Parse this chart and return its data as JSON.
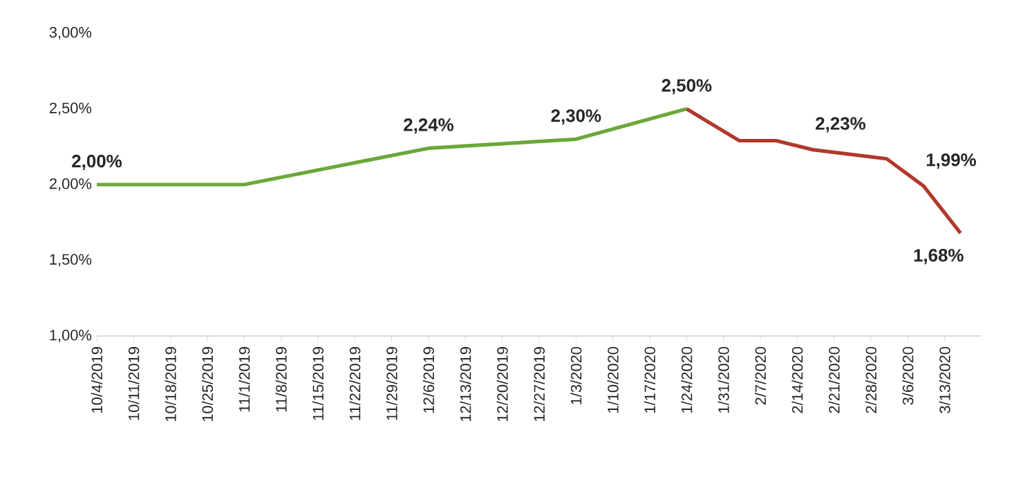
{
  "chart_data": {
    "type": "line",
    "xlim": [
      "2019-10-04",
      "2020-03-20"
    ],
    "xticks": [
      {
        "value": "2019-10-04",
        "label": "10/4/2019"
      },
      {
        "value": "2019-10-11",
        "label": "10/11/2019"
      },
      {
        "value": "2019-10-18",
        "label": "10/18/2019"
      },
      {
        "value": "2019-10-25",
        "label": "10/25/2019"
      },
      {
        "value": "2019-11-01",
        "label": "11/1/2019"
      },
      {
        "value": "2019-11-08",
        "label": "11/8/2019"
      },
      {
        "value": "2019-11-15",
        "label": "11/15/2019"
      },
      {
        "value": "2019-11-22",
        "label": "11/22/2019"
      },
      {
        "value": "2019-11-29",
        "label": "11/29/2019"
      },
      {
        "value": "2019-12-06",
        "label": "12/6/2019"
      },
      {
        "value": "2019-12-13",
        "label": "12/13/2019"
      },
      {
        "value": "2019-12-20",
        "label": "12/20/2019"
      },
      {
        "value": "2019-12-27",
        "label": "12/27/2019"
      },
      {
        "value": "2020-01-03",
        "label": "1/3/2020"
      },
      {
        "value": "2020-01-10",
        "label": "1/10/2020"
      },
      {
        "value": "2020-01-17",
        "label": "1/17/2020"
      },
      {
        "value": "2020-01-24",
        "label": "1/24/2020"
      },
      {
        "value": "2020-01-31",
        "label": "1/31/2020"
      },
      {
        "value": "2020-02-07",
        "label": "2/7/2020"
      },
      {
        "value": "2020-02-14",
        "label": "2/14/2020"
      },
      {
        "value": "2020-02-21",
        "label": "2/21/2020"
      },
      {
        "value": "2020-02-28",
        "label": "2/28/2020"
      },
      {
        "value": "2020-03-06",
        "label": "3/6/2020"
      },
      {
        "value": "2020-03-13",
        "label": "3/13/2020"
      }
    ],
    "ylim": [
      1.0,
      3.0
    ],
    "yticks": [
      {
        "value": 1.0,
        "label": "1,00%"
      },
      {
        "value": 1.5,
        "label": "1,50%"
      },
      {
        "value": 2.0,
        "label": "2,00%"
      },
      {
        "value": 2.5,
        "label": "2,50%"
      },
      {
        "value": 3.0,
        "label": "3,00%"
      }
    ],
    "grid": false,
    "line_style": "solid",
    "marker": "none",
    "series": [
      {
        "color": "#6aa83a",
        "x": [
          "2019-10-04",
          "2019-11-01",
          "2019-12-06",
          "2020-01-03",
          "2020-01-24"
        ],
        "values": [
          2.0,
          2.0,
          2.24,
          2.3,
          2.5
        ],
        "value_labels": [
          "2,00%",
          null,
          "2,24%",
          "2,30%",
          null
        ]
      },
      {
        "color": "#b0392c",
        "x": [
          "2020-01-24",
          "2020-02-03",
          "2020-02-10",
          "2020-02-17",
          "2020-02-24",
          "2020-03-02",
          "2020-03-09",
          "2020-03-16"
        ],
        "values": [
          2.5,
          2.29,
          2.29,
          2.23,
          2.2,
          2.17,
          1.99,
          1.68
        ],
        "value_labels": [
          "2,50%",
          null,
          null,
          "2,23%",
          null,
          null,
          "1,99%",
          "1,68%"
        ]
      }
    ]
  }
}
